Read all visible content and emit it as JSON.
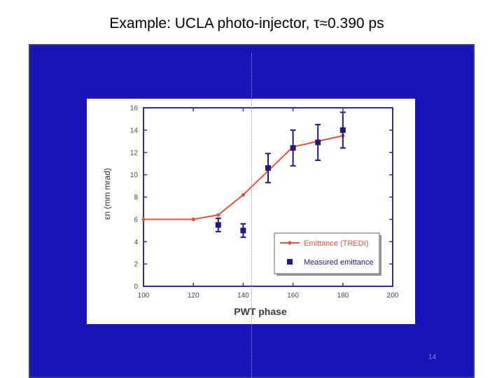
{
  "slide": {
    "title": "Example: UCLA photo-injector, τ≈0.390 ps",
    "page_number": "14"
  },
  "colors": {
    "panel": "#1a14b8",
    "frame": "#3c2a8c",
    "simulation_line": "#d9573c",
    "measured_marker": "#2a1678"
  },
  "chart_data": {
    "type": "line",
    "xlabel": "PWT  phase",
    "ylabel": "εn (mm mrad)",
    "xlim": [
      100,
      200
    ],
    "ylim": [
      0,
      16
    ],
    "xticks": [
      100,
      120,
      140,
      160,
      180,
      200
    ],
    "yticks": [
      0,
      2,
      4,
      6,
      8,
      10,
      12,
      14,
      16
    ],
    "grid": false,
    "legend_position": "bottom-right",
    "series": [
      {
        "name": "Emittance (TREDI)",
        "kind": "line",
        "color": "#d9573c",
        "x": [
          100,
          120,
          130,
          140,
          160,
          180
        ],
        "y": [
          6.0,
          6.0,
          6.4,
          8.2,
          12.5,
          13.5
        ]
      },
      {
        "name": "Measured emittance",
        "kind": "scatter",
        "color": "#2a1678",
        "x": [
          130,
          140,
          150,
          160,
          170,
          180
        ],
        "y": [
          5.5,
          5.0,
          10.6,
          12.4,
          12.9,
          14.0
        ],
        "err": [
          0.6,
          0.6,
          1.3,
          1.6,
          1.6,
          1.6
        ]
      }
    ]
  }
}
